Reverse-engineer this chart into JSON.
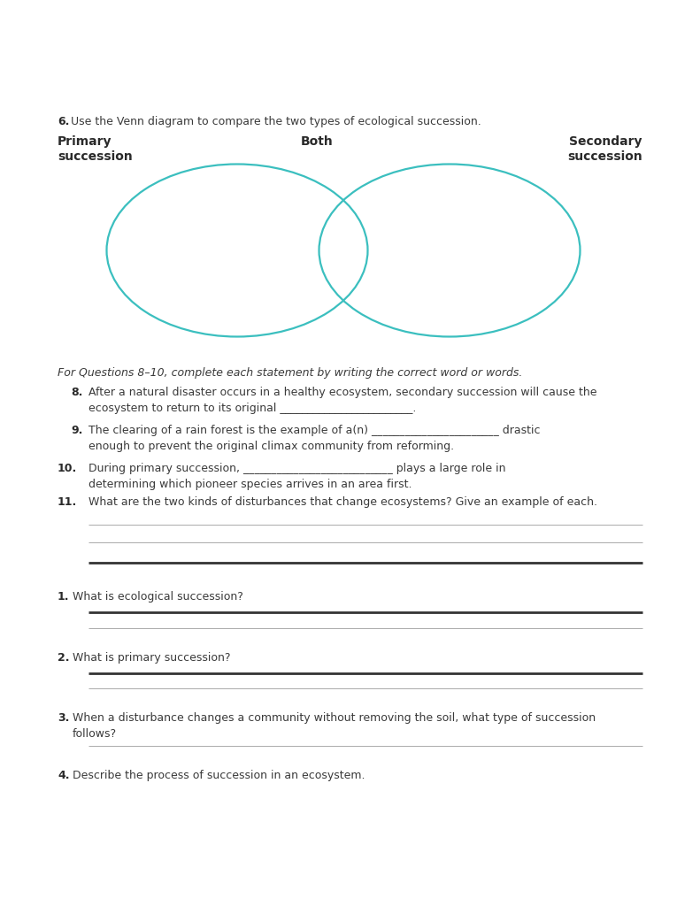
{
  "background_color": "#ffffff",
  "ellipse_color": "#3BBFBF",
  "ellipse_lw": 1.6,
  "text_color": "#3a3a3a",
  "bold_color": "#2a2a2a",
  "font_size_main": 9.0,
  "font_size_label": 10.0,
  "q6_text": "Use the Venn diagram to compare the two types of ecological succession.",
  "label_primary_line1": "Primary",
  "label_primary_line2": "succession",
  "label_both": "Both",
  "label_secondary_line1": "Secondary",
  "label_secondary_line2": "succession",
  "italic_header": "For Questions 8–10, complete each statement by writing the correct word or words.",
  "q8_line1": "After a natural disaster occurs in a healthy ecosystem, secondary succession will cause the",
  "q8_line2": "ecosystem to return to its original ________________________.",
  "q9_line1": "The clearing of a rain forest is the example of a(n) _______________________ drastic",
  "q9_line2": "enough to prevent the original climax community from reforming.",
  "q10_line1": "During primary succession, ___________________________ plays a large role in",
  "q10_line2": "determining which pioneer species arrives in an area first.",
  "q11_line1": "What are the two kinds of disturbances that change ecosystems? Give an example of each.",
  "q1_text": "What is ecological succession?",
  "q2_text": "What is primary succession?",
  "q3_line1": "When a disturbance changes a community without removing the soil, what type of succession",
  "q3_line2": "follows?",
  "q4_text": "Describe the process of succession in an ecosystem."
}
